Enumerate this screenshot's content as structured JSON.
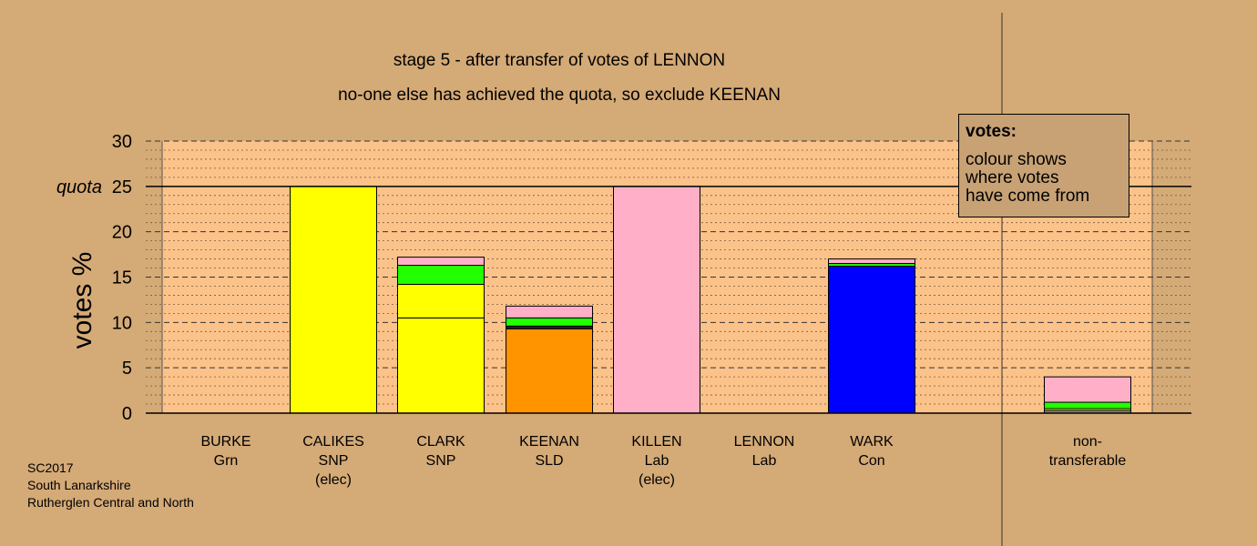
{
  "chart_data": {
    "type": "bar",
    "stacked": true,
    "title_lines": [
      "stage 5 - after transfer of votes of LENNON",
      "no-one else has achieved the quota, so exclude KEENAN"
    ],
    "ylabel": "votes %",
    "ylim": [
      0,
      30
    ],
    "yticks": [
      0,
      5,
      10,
      15,
      20,
      25,
      30
    ],
    "quota": 25,
    "quota_label": "quota",
    "grid": true,
    "categories": [
      {
        "name": "BURKE",
        "party": "Grn",
        "note": ""
      },
      {
        "name": "CALIKES",
        "party": "SNP",
        "note": "(elec)"
      },
      {
        "name": "CLARK",
        "party": "SNP",
        "note": ""
      },
      {
        "name": "KEENAN",
        "party": "SLD",
        "note": ""
      },
      {
        "name": "KILLEN",
        "party": "Lab",
        "note": "(elec)"
      },
      {
        "name": "LENNON",
        "party": "Lab",
        "note": ""
      },
      {
        "name": "WARK",
        "party": "Con",
        "note": ""
      },
      {
        "name": "non-",
        "party": "transferable",
        "note": ""
      }
    ],
    "stacks": [
      [],
      [
        {
          "value": 25.0,
          "color": "#ffff00"
        }
      ],
      [
        {
          "value": 10.5,
          "color": "#ffff00"
        },
        {
          "value": 3.7,
          "color": "#ffff00"
        },
        {
          "value": 2.1,
          "color": "#22ff00"
        },
        {
          "value": 0.9,
          "color": "#ffb0c8"
        }
      ],
      [
        {
          "value": 9.3,
          "color": "#ff9400"
        },
        {
          "value": 0.3,
          "color": "#222222"
        },
        {
          "value": 0.9,
          "color": "#22ff00"
        },
        {
          "value": 1.3,
          "color": "#ffb0c8"
        }
      ],
      [
        {
          "value": 25.0,
          "color": "#ffb0c8"
        }
      ],
      [],
      [
        {
          "value": 16.2,
          "color": "#0000ff"
        },
        {
          "value": 0.3,
          "color": "#22ff00"
        },
        {
          "value": 0.5,
          "color": "#ffb0c8"
        }
      ],
      [
        {
          "value": 0.3,
          "color": "#888888"
        },
        {
          "value": 0.2,
          "color": "#ffff00"
        },
        {
          "value": 0.7,
          "color": "#22ff00"
        },
        {
          "value": 2.8,
          "color": "#ffb0c8"
        }
      ]
    ],
    "legend": {
      "title": "votes:",
      "lines": [
        "colour shows",
        "where votes",
        "have come from"
      ],
      "placement": "top-right"
    }
  },
  "footer": [
    "SC2017",
    "South Lanarkshire",
    "Rutherglen Central and North"
  ],
  "colors": {
    "background": "#d4aa77",
    "plot_background": "#fbc38a",
    "legend_background": "#c8a274"
  }
}
